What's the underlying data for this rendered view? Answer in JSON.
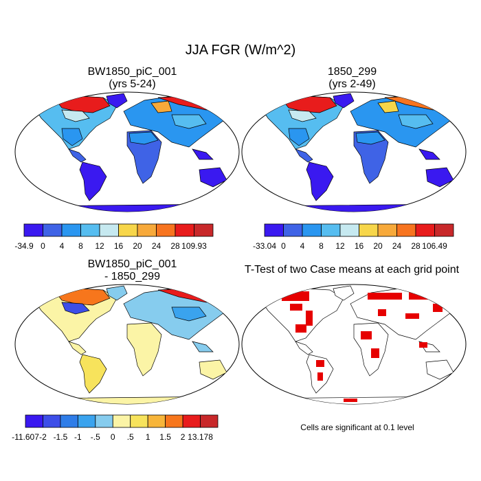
{
  "main_title": "JJA FGR (W/m^2)",
  "panels": {
    "top_left": {
      "title": "BW1850_piC_001",
      "subtitle": "(yrs 5-24)"
    },
    "top_right": {
      "title": "1850_299",
      "subtitle": "(yrs 2-49)"
    },
    "bottom_left": {
      "title": "BW1850_piC_001",
      "subtitle": "- 1850_299"
    },
    "bottom_right": {
      "title": "T-Test of two Case means at each grid point",
      "note": "Cells are significant at 0.1 level"
    }
  },
  "colorbars": {
    "top_left": {
      "colors": [
        "#3a19f0",
        "#3f63e6",
        "#2a96f0",
        "#56bdf0",
        "#c6e9f0",
        "#f7d64a",
        "#f7a93a",
        "#f7741f",
        "#e81c1c",
        "#c8282a"
      ],
      "labels": [
        "-34.9",
        "0",
        "4",
        "8",
        "12",
        "16",
        "20",
        "24",
        "28",
        "109.93"
      ]
    },
    "top_right": {
      "colors": [
        "#3a19f0",
        "#3f63e6",
        "#2a96f0",
        "#56bdf0",
        "#c6e9f0",
        "#f7d64a",
        "#f7a93a",
        "#f7741f",
        "#e81c1c",
        "#c8282a"
      ],
      "labels": [
        "-33.04",
        "0",
        "4",
        "8",
        "12",
        "16",
        "20",
        "24",
        "28",
        "106.49"
      ]
    },
    "bottom_left": {
      "colors": [
        "#3a19f0",
        "#3d4ee8",
        "#2f7de8",
        "#3aa3ee",
        "#86ccee",
        "#fbf4a6",
        "#f7e35c",
        "#f7b53a",
        "#f7761c",
        "#e81c1c",
        "#c8282a"
      ],
      "labels": [
        "-11.607",
        "-2",
        "-1.5",
        "-1",
        "-.5",
        "0",
        ".5",
        "1",
        "1.5",
        "2",
        "13.178"
      ]
    }
  }
}
